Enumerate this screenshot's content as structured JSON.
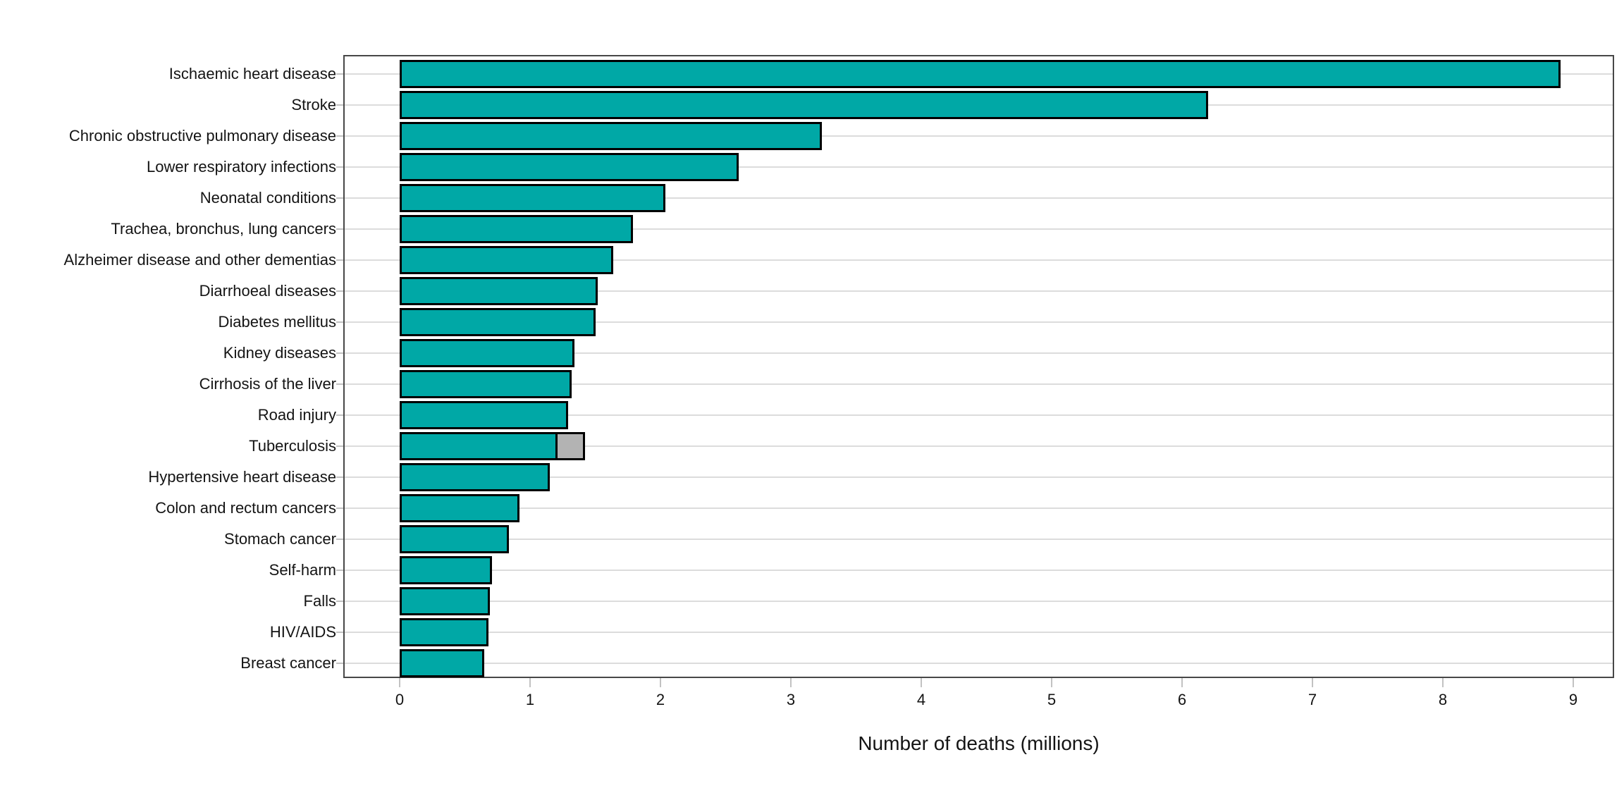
{
  "chart_data": {
    "type": "bar",
    "orientation": "horizontal",
    "title": "",
    "xlabel": "Number of deaths (millions)",
    "ylabel": "",
    "xlim": [
      0,
      9.3
    ],
    "xtick_labels": [
      "0",
      "1",
      "2",
      "3",
      "4",
      "5",
      "6",
      "7",
      "8",
      "9"
    ],
    "grid": "horizontal category gridlines only",
    "legend": "none",
    "bar_color": "#00a8a6",
    "bar_outline_color": "#000000",
    "secondary_segment_color": "#b3b3b3",
    "gridline_color": "#dcdcdc",
    "tick_color": "#c2c2c2",
    "panel_border_color": "#474747",
    "rows": [
      {
        "label": "Ischaemic heart disease",
        "value": 8.9
      },
      {
        "label": "Stroke",
        "value": 6.2
      },
      {
        "label": "Chronic obstructive pulmonary disease",
        "value": 3.24
      },
      {
        "label": "Lower respiratory infections",
        "value": 2.6
      },
      {
        "label": "Neonatal conditions",
        "value": 2.04
      },
      {
        "label": "Trachea, bronchus, lung cancers",
        "value": 1.79
      },
      {
        "label": "Alzheimer disease and other dementias",
        "value": 1.64
      },
      {
        "label": "Diarrhoeal diseases",
        "value": 1.52
      },
      {
        "label": "Diabetes mellitus",
        "value": 1.5
      },
      {
        "label": "Kidney diseases",
        "value": 1.34
      },
      {
        "label": "Cirrhosis of the liver",
        "value": 1.32
      },
      {
        "label": "Road injury",
        "value": 1.29
      },
      {
        "label": "Tuberculosis",
        "value": 1.21,
        "secondary_value": 0.21
      },
      {
        "label": "Hypertensive heart disease",
        "value": 1.15
      },
      {
        "label": "Colon and rectum cancers",
        "value": 0.92
      },
      {
        "label": "Stomach cancer",
        "value": 0.84
      },
      {
        "label": "Self-harm",
        "value": 0.71
      },
      {
        "label": "Falls",
        "value": 0.69
      },
      {
        "label": "HIV/AIDS",
        "value": 0.68
      },
      {
        "label": "Breast cancer",
        "value": 0.65
      }
    ]
  }
}
